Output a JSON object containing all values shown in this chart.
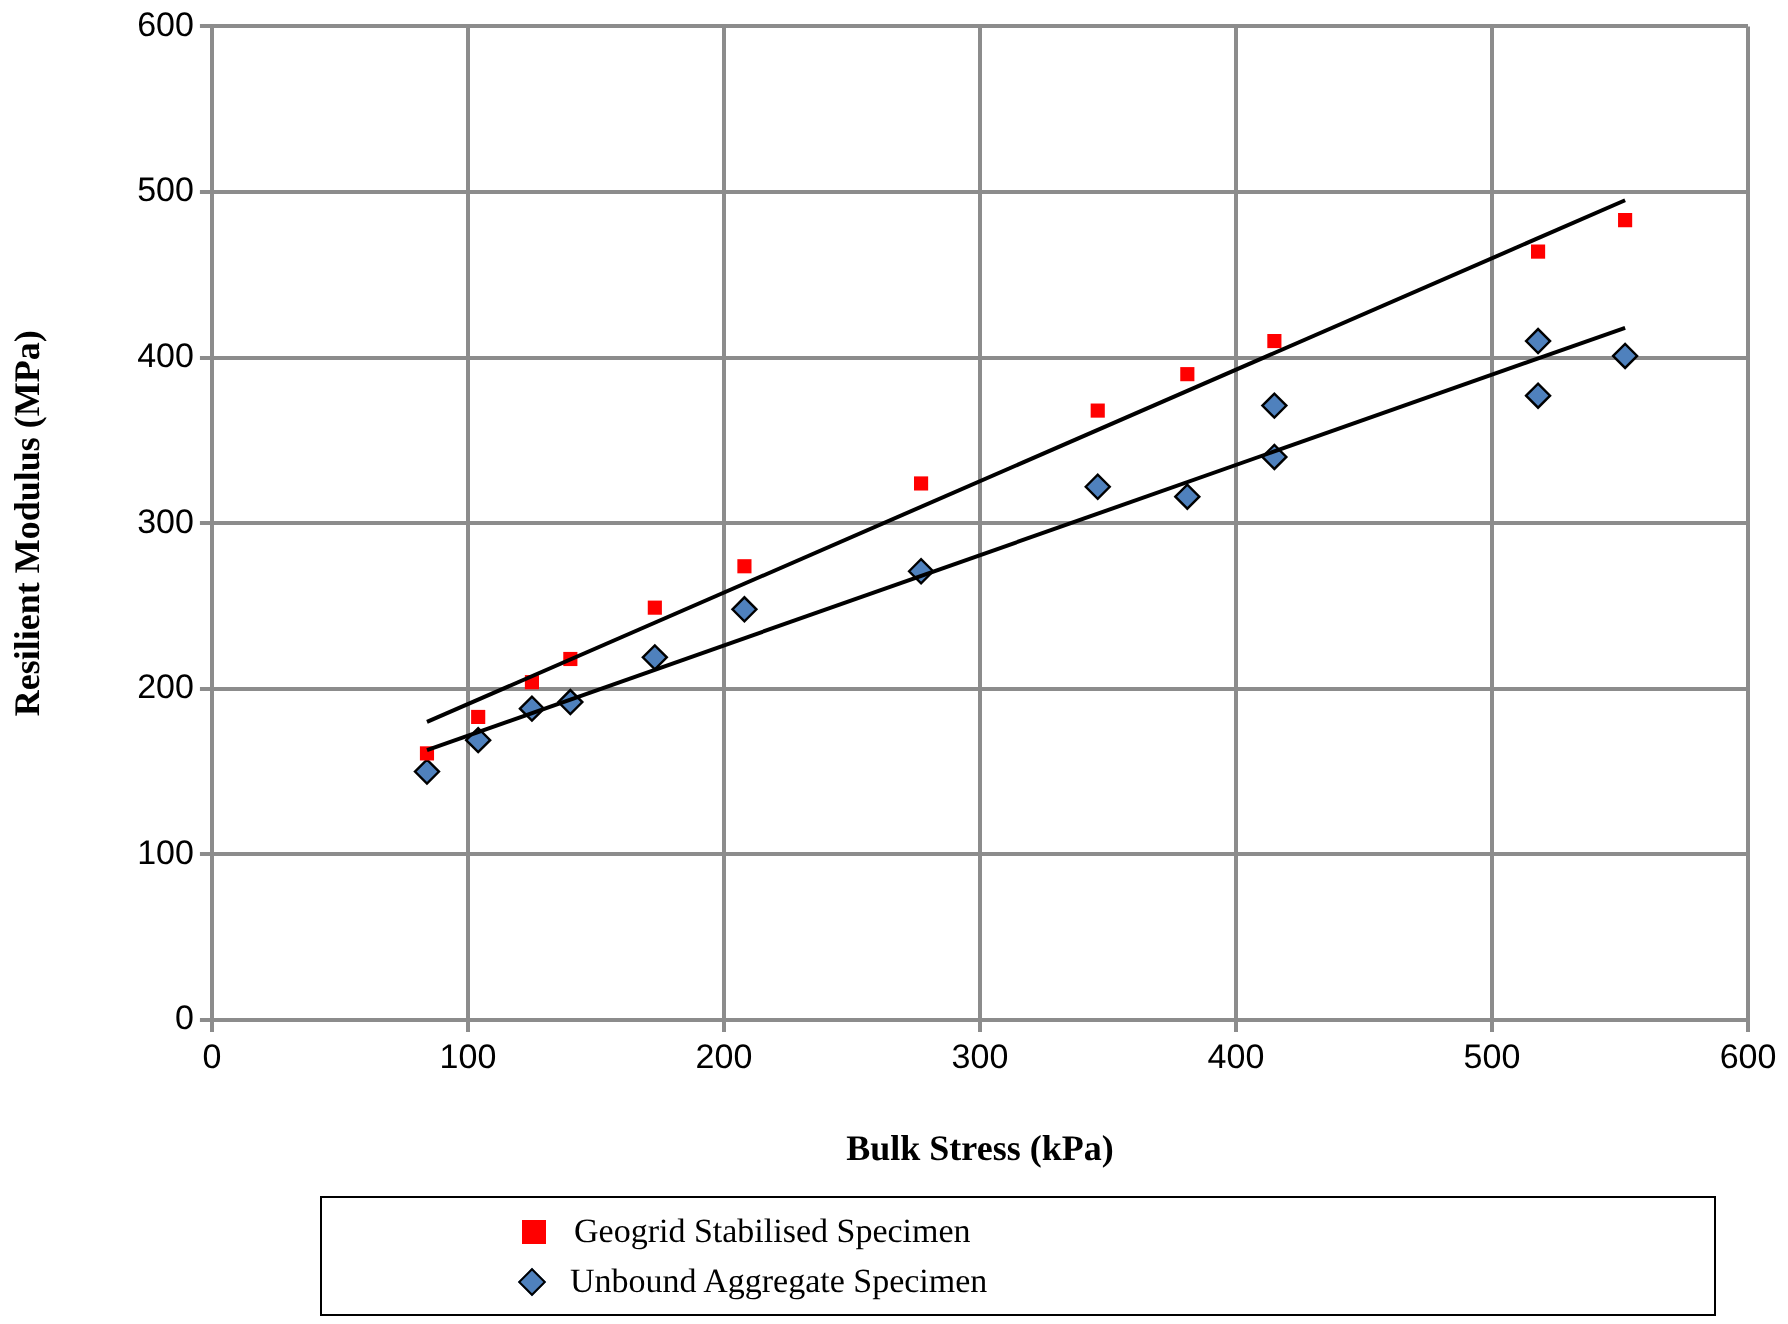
{
  "chart_data": {
    "type": "scatter",
    "xlabel": "Bulk Stress (kPa)",
    "ylabel": "Resilient Modulus (MPa)",
    "xlim": [
      0,
      600
    ],
    "xticks": [
      0,
      100,
      200,
      300,
      400,
      500,
      600
    ],
    "ylim": [
      0,
      600
    ],
    "yticks": [
      0,
      100,
      200,
      300,
      400,
      500,
      600
    ],
    "grid": true,
    "legend": "bottom",
    "series": [
      {
        "name": "Geogrid Stabilised Specimen",
        "color": "#ff0000",
        "marker": "square",
        "x": [
          84,
          104,
          125,
          140,
          173,
          208,
          277,
          346,
          381,
          415,
          518,
          552
        ],
        "values": [
          161,
          183,
          204,
          218,
          249,
          274,
          324,
          368,
          390,
          410,
          464,
          483
        ]
      },
      {
        "name": "Unbound Aggregate Specimen",
        "color": "#4f81bd",
        "marker": "diamond",
        "x": [
          84,
          104,
          125,
          140,
          173,
          208,
          277,
          346,
          381,
          415,
          415,
          518,
          518,
          552
        ],
        "values": [
          150,
          169,
          188,
          192,
          219,
          248,
          271,
          322,
          316,
          340,
          371,
          410,
          377,
          401
        ]
      },
      {
        "type": "line",
        "color": "#000000",
        "marker": "none",
        "x": [
          84,
          552
        ],
        "values": [
          180,
          495
        ]
      },
      {
        "type": "line",
        "color": "#000000",
        "marker": "none",
        "x": [
          84,
          552
        ],
        "values": [
          163,
          418
        ]
      }
    ]
  }
}
